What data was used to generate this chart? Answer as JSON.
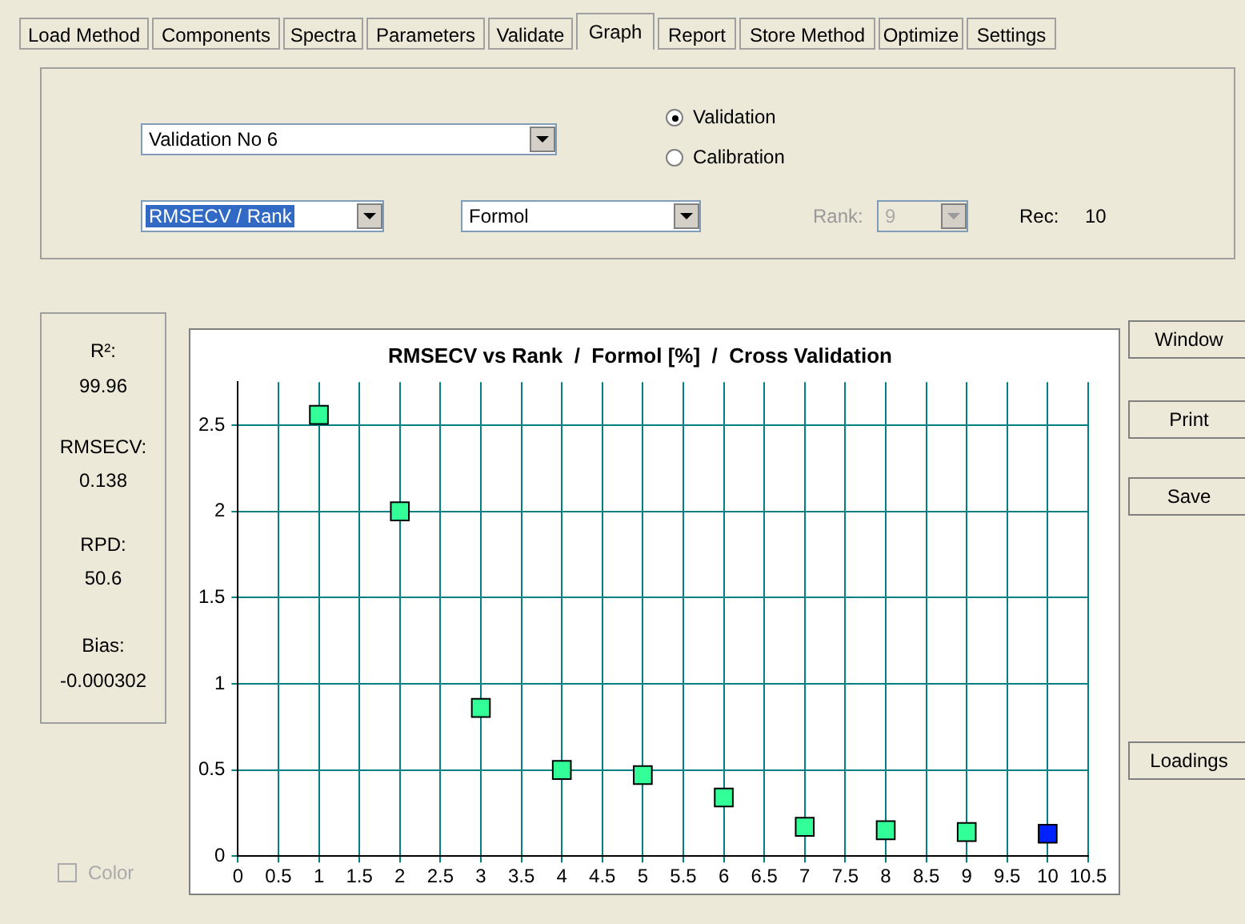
{
  "chart_data": [
    {
      "type": "scatter",
      "title": "RMSECV vs Rank  /  Formol [%]  /  Cross Validation",
      "x": [
        1,
        2,
        3,
        4,
        5,
        6,
        7,
        8,
        9,
        10
      ],
      "values": [
        2.56,
        2.0,
        0.86,
        0.5,
        0.47,
        0.34,
        0.17,
        0.15,
        0.14,
        0.13
      ],
      "colors": [
        "#33ff99",
        "#33ff99",
        "#33ff99",
        "#33ff99",
        "#33ff99",
        "#33ff99",
        "#33ff99",
        "#33ff99",
        "#33ff99",
        "#0022ff"
      ],
      "marker": "square",
      "xlim": [
        0,
        10.5
      ],
      "xticks": [
        0,
        0.5,
        1,
        1.5,
        2,
        2.5,
        3,
        3.5,
        4,
        4.5,
        5,
        5.5,
        6,
        6.5,
        7,
        7.5,
        8,
        8.5,
        9,
        9.5,
        10,
        10.5
      ],
      "ylim": [
        0,
        2.75
      ],
      "yticks": [
        0,
        0.5,
        1,
        1.5,
        2,
        2.5
      ],
      "grid": true,
      "legend": false
    },
    {
      "type": "other",
      "annotations": [
        "Load Method",
        "Components",
        "Spectra",
        "Parameters",
        "Validate",
        "Graph",
        "Report",
        "Store Method",
        "Optimize",
        "Settings"
      ]
    },
    {
      "type": "other",
      "annotations": [
        "Validation No 6",
        "Validation",
        "Calibration",
        "RMSECV / Rank",
        "Formol",
        "Rank:",
        "9",
        "Rec:",
        "10"
      ]
    },
    {
      "type": "other",
      "annotations": [
        "R²:",
        "99.96",
        "RMSECV:",
        "0.138",
        "RPD:",
        "50.6",
        "Bias:",
        "-0.000302"
      ]
    },
    {
      "type": "other",
      "annotations": [
        "Window",
        "Print",
        "Save",
        "Loadings",
        "Color"
      ]
    }
  ]
}
